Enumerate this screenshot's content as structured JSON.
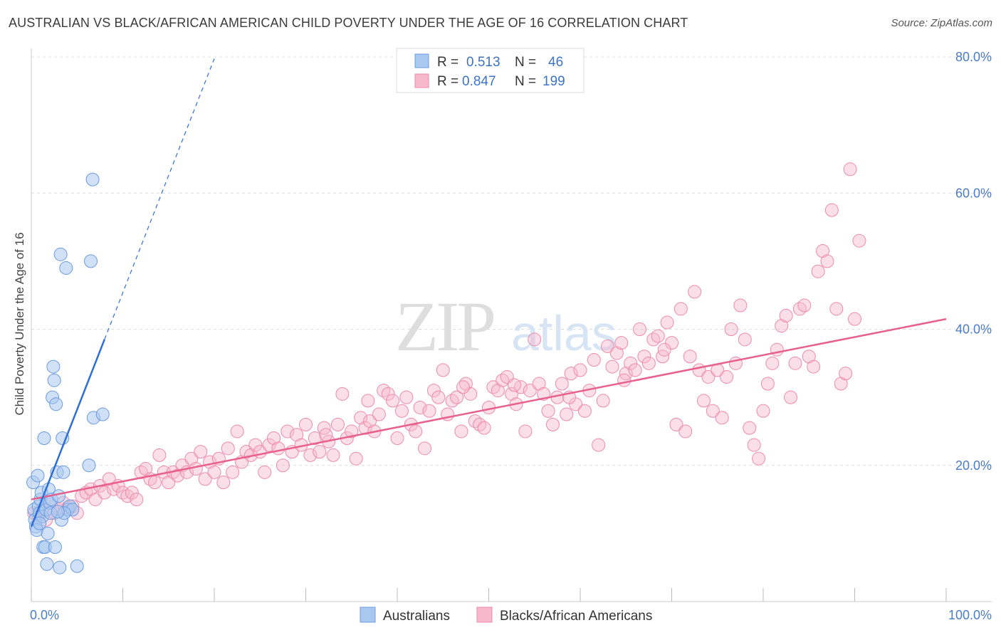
{
  "title": "AUSTRALIAN VS BLACK/AFRICAN AMERICAN CHILD POVERTY UNDER THE AGE OF 16 CORRELATION CHART",
  "source": "Source: ZipAtlas.com",
  "watermark": {
    "zip": "ZIP",
    "atlas": "atlas"
  },
  "colors": {
    "blue_fill": "#a9c8f0",
    "blue_stroke": "#6a9be0",
    "blue_line": "#2d6fd6",
    "pink_fill": "#f7b8cb",
    "pink_stroke": "#ee8aa9",
    "pink_line": "#e8608c",
    "grid": "#dddddd",
    "tick_label": "#4a7cc7"
  },
  "legend": {
    "rows": [
      {
        "r_label": "R =",
        "r_value": "0.513",
        "n_label": "N =",
        "n_value": "46"
      },
      {
        "r_label": "R =",
        "r_value": "0.847",
        "n_label": "N =",
        "n_value": "199"
      }
    ]
  },
  "chart_data": {
    "type": "scatter",
    "ylabel": "Child Poverty Under the Age of 16",
    "xlim": [
      0,
      100
    ],
    "ylim": [
      0,
      80
    ],
    "x_tick_labels": [
      "0.0%",
      "100.0%"
    ],
    "y_ticks": [
      20,
      40,
      60,
      80
    ],
    "y_tick_labels": [
      "20.0%",
      "40.0%",
      "60.0%",
      "80.0%"
    ],
    "grid": true,
    "legend_position": "top-center",
    "series": [
      {
        "name": "Australians",
        "trend": {
          "x0": 0,
          "y0": 11,
          "x1": 8,
          "y1": 38.5,
          "dash_to_x": 20
        },
        "points": [
          [
            0.2,
            17.5
          ],
          [
            0.3,
            13.5
          ],
          [
            0.4,
            12
          ],
          [
            0.5,
            11
          ],
          [
            0.6,
            10.5
          ],
          [
            0.7,
            18.5
          ],
          [
            0.8,
            14
          ],
          [
            0.9,
            13
          ],
          [
            1.0,
            15
          ],
          [
            1.1,
            16
          ],
          [
            1.2,
            12.5
          ],
          [
            1.3,
            8
          ],
          [
            1.5,
            8
          ],
          [
            1.6,
            13.5
          ],
          [
            1.7,
            5.5
          ],
          [
            1.8,
            10
          ],
          [
            1.9,
            16.5
          ],
          [
            2.0,
            14.5
          ],
          [
            2.1,
            13
          ],
          [
            2.2,
            15
          ],
          [
            2.3,
            30
          ],
          [
            2.4,
            34.5
          ],
          [
            2.5,
            32.5
          ],
          [
            2.6,
            8
          ],
          [
            2.7,
            29
          ],
          [
            2.8,
            19
          ],
          [
            3.0,
            15.5
          ],
          [
            3.1,
            5
          ],
          [
            3.2,
            51
          ],
          [
            3.3,
            12
          ],
          [
            3.4,
            24
          ],
          [
            3.5,
            19
          ],
          [
            3.8,
            49
          ],
          [
            4.0,
            13.5
          ],
          [
            4.2,
            14
          ],
          [
            4.5,
            13.5
          ],
          [
            5.0,
            5.2
          ],
          [
            6.3,
            20
          ],
          [
            6.5,
            50
          ],
          [
            6.7,
            62
          ],
          [
            6.8,
            27
          ],
          [
            7.8,
            27.5
          ],
          [
            1.4,
            24
          ],
          [
            0.9,
            11.5
          ],
          [
            3.6,
            13
          ],
          [
            2.9,
            13.2
          ]
        ]
      },
      {
        "name": "Blacks/African Americans",
        "trend": {
          "x0": 0,
          "y0": 15,
          "x1": 100,
          "y1": 41.5
        },
        "points": [
          [
            0.3,
            13
          ],
          [
            0.8,
            12.5
          ],
          [
            1.2,
            13.5
          ],
          [
            1.6,
            12
          ],
          [
            2.0,
            14.5
          ],
          [
            2.5,
            13
          ],
          [
            3.0,
            13.5
          ],
          [
            3.5,
            14.5
          ],
          [
            4.0,
            13.8
          ],
          [
            4.5,
            14
          ],
          [
            5.0,
            13
          ],
          [
            5.5,
            15.5
          ],
          [
            6.0,
            16
          ],
          [
            6.5,
            16.5
          ],
          [
            7.0,
            15
          ],
          [
            7.5,
            17
          ],
          [
            8.0,
            16
          ],
          [
            8.5,
            18
          ],
          [
            9.0,
            16.5
          ],
          [
            9.5,
            17
          ],
          [
            10.0,
            16
          ],
          [
            10.5,
            15.5
          ],
          [
            11.0,
            16
          ],
          [
            11.5,
            15
          ],
          [
            12.0,
            19
          ],
          [
            12.5,
            19.5
          ],
          [
            13.0,
            18
          ],
          [
            13.5,
            17.5
          ],
          [
            14.0,
            21.5
          ],
          [
            14.5,
            19
          ],
          [
            15.0,
            17.5
          ],
          [
            15.5,
            19
          ],
          [
            16.0,
            18.5
          ],
          [
            16.5,
            20
          ],
          [
            17.0,
            19
          ],
          [
            17.5,
            21
          ],
          [
            18.0,
            19.5
          ],
          [
            18.5,
            22
          ],
          [
            19.0,
            18
          ],
          [
            19.5,
            20.5
          ],
          [
            20.0,
            19
          ],
          [
            20.5,
            21
          ],
          [
            21.0,
            17.5
          ],
          [
            21.5,
            22.5
          ],
          [
            22.0,
            19
          ],
          [
            22.5,
            25
          ],
          [
            23.0,
            20.5
          ],
          [
            23.5,
            22
          ],
          [
            24.0,
            21.5
          ],
          [
            24.5,
            23
          ],
          [
            25.0,
            22
          ],
          [
            25.5,
            19
          ],
          [
            26.0,
            23
          ],
          [
            26.5,
            24
          ],
          [
            27.0,
            22.5
          ],
          [
            27.5,
            20
          ],
          [
            28.0,
            25
          ],
          [
            28.5,
            22
          ],
          [
            29.0,
            24.5
          ],
          [
            29.5,
            23
          ],
          [
            30.0,
            26
          ],
          [
            30.5,
            21.5
          ],
          [
            31.0,
            24
          ],
          [
            31.5,
            22
          ],
          [
            32.0,
            25.5
          ],
          [
            32.5,
            23.5
          ],
          [
            33.0,
            21.5
          ],
          [
            33.5,
            26
          ],
          [
            34.0,
            30.5
          ],
          [
            34.5,
            24
          ],
          [
            35.0,
            25
          ],
          [
            35.5,
            21
          ],
          [
            36.0,
            27
          ],
          [
            36.5,
            25.5
          ],
          [
            37.0,
            26.5
          ],
          [
            37.5,
            25
          ],
          [
            38.0,
            27.5
          ],
          [
            38.5,
            31
          ],
          [
            39.0,
            30.5
          ],
          [
            39.5,
            29.5
          ],
          [
            40.0,
            24
          ],
          [
            40.5,
            28
          ],
          [
            41.0,
            30
          ],
          [
            41.5,
            26
          ],
          [
            42.0,
            25
          ],
          [
            42.5,
            28.5
          ],
          [
            43.0,
            22.5
          ],
          [
            43.5,
            28
          ],
          [
            44.0,
            31
          ],
          [
            44.5,
            30
          ],
          [
            45.0,
            34
          ],
          [
            45.5,
            27.5
          ],
          [
            46.0,
            29.5
          ],
          [
            46.5,
            30
          ],
          [
            47.0,
            25
          ],
          [
            47.5,
            32
          ],
          [
            48.0,
            30.5
          ],
          [
            48.5,
            26.5
          ],
          [
            49.0,
            26
          ],
          [
            49.5,
            25.5
          ],
          [
            50.0,
            28.5
          ],
          [
            50.5,
            31.5
          ],
          [
            51.0,
            31
          ],
          [
            51.5,
            32.5
          ],
          [
            52.0,
            33
          ],
          [
            52.5,
            30.5
          ],
          [
            53.0,
            29
          ],
          [
            53.5,
            31.5
          ],
          [
            54.0,
            25
          ],
          [
            54.5,
            31
          ],
          [
            55.0,
            38.5
          ],
          [
            55.5,
            32
          ],
          [
            56.0,
            30.5
          ],
          [
            56.5,
            28
          ],
          [
            57.0,
            26
          ],
          [
            57.5,
            30
          ],
          [
            58.0,
            32
          ],
          [
            58.5,
            27.5
          ],
          [
            59.0,
            33.5
          ],
          [
            59.5,
            29
          ],
          [
            60.0,
            34
          ],
          [
            60.5,
            28
          ],
          [
            61.0,
            31
          ],
          [
            61.5,
            35.5
          ],
          [
            62.0,
            23
          ],
          [
            62.5,
            29.5
          ],
          [
            63.0,
            37.5
          ],
          [
            63.5,
            34.5
          ],
          [
            64.0,
            36.5
          ],
          [
            64.5,
            38
          ],
          [
            65.0,
            33.5
          ],
          [
            65.5,
            35
          ],
          [
            66.0,
            34
          ],
          [
            66.5,
            40
          ],
          [
            67.0,
            36
          ],
          [
            67.5,
            35
          ],
          [
            68.0,
            38.5
          ],
          [
            68.5,
            39
          ],
          [
            69.0,
            36
          ],
          [
            69.5,
            41
          ],
          [
            70.0,
            38
          ],
          [
            70.5,
            26
          ],
          [
            71.0,
            43
          ],
          [
            71.5,
            25
          ],
          [
            72.0,
            36
          ],
          [
            72.5,
            45.5
          ],
          [
            73.0,
            34
          ],
          [
            73.5,
            29.5
          ],
          [
            74.0,
            33
          ],
          [
            74.5,
            28
          ],
          [
            75.0,
            34
          ],
          [
            75.5,
            27
          ],
          [
            76.0,
            33
          ],
          [
            76.5,
            40
          ],
          [
            77.0,
            35
          ],
          [
            77.5,
            43.5
          ],
          [
            78.0,
            38.5
          ],
          [
            78.5,
            25.5
          ],
          [
            79.0,
            23
          ],
          [
            79.5,
            21
          ],
          [
            80.0,
            28
          ],
          [
            80.5,
            32
          ],
          [
            81.0,
            35
          ],
          [
            81.5,
            37
          ],
          [
            82.0,
            40.5
          ],
          [
            82.5,
            42
          ],
          [
            83.0,
            30
          ],
          [
            83.5,
            35
          ],
          [
            84.0,
            43
          ],
          [
            84.5,
            43.5
          ],
          [
            85.0,
            36
          ],
          [
            85.5,
            34.5
          ],
          [
            86.0,
            48.5
          ],
          [
            86.5,
            51.5
          ],
          [
            87.0,
            50
          ],
          [
            87.5,
            57.5
          ],
          [
            88.0,
            43
          ],
          [
            88.5,
            32
          ],
          [
            89.0,
            33.5
          ],
          [
            89.5,
            63.5
          ],
          [
            90.0,
            41.5
          ],
          [
            90.5,
            53
          ],
          [
            69.2,
            37
          ],
          [
            52.8,
            31.8
          ],
          [
            47.2,
            31.5
          ],
          [
            36.8,
            29.5
          ],
          [
            32.2,
            24.5
          ],
          [
            58.8,
            30
          ],
          [
            64.8,
            32.5
          ]
        ]
      }
    ]
  }
}
